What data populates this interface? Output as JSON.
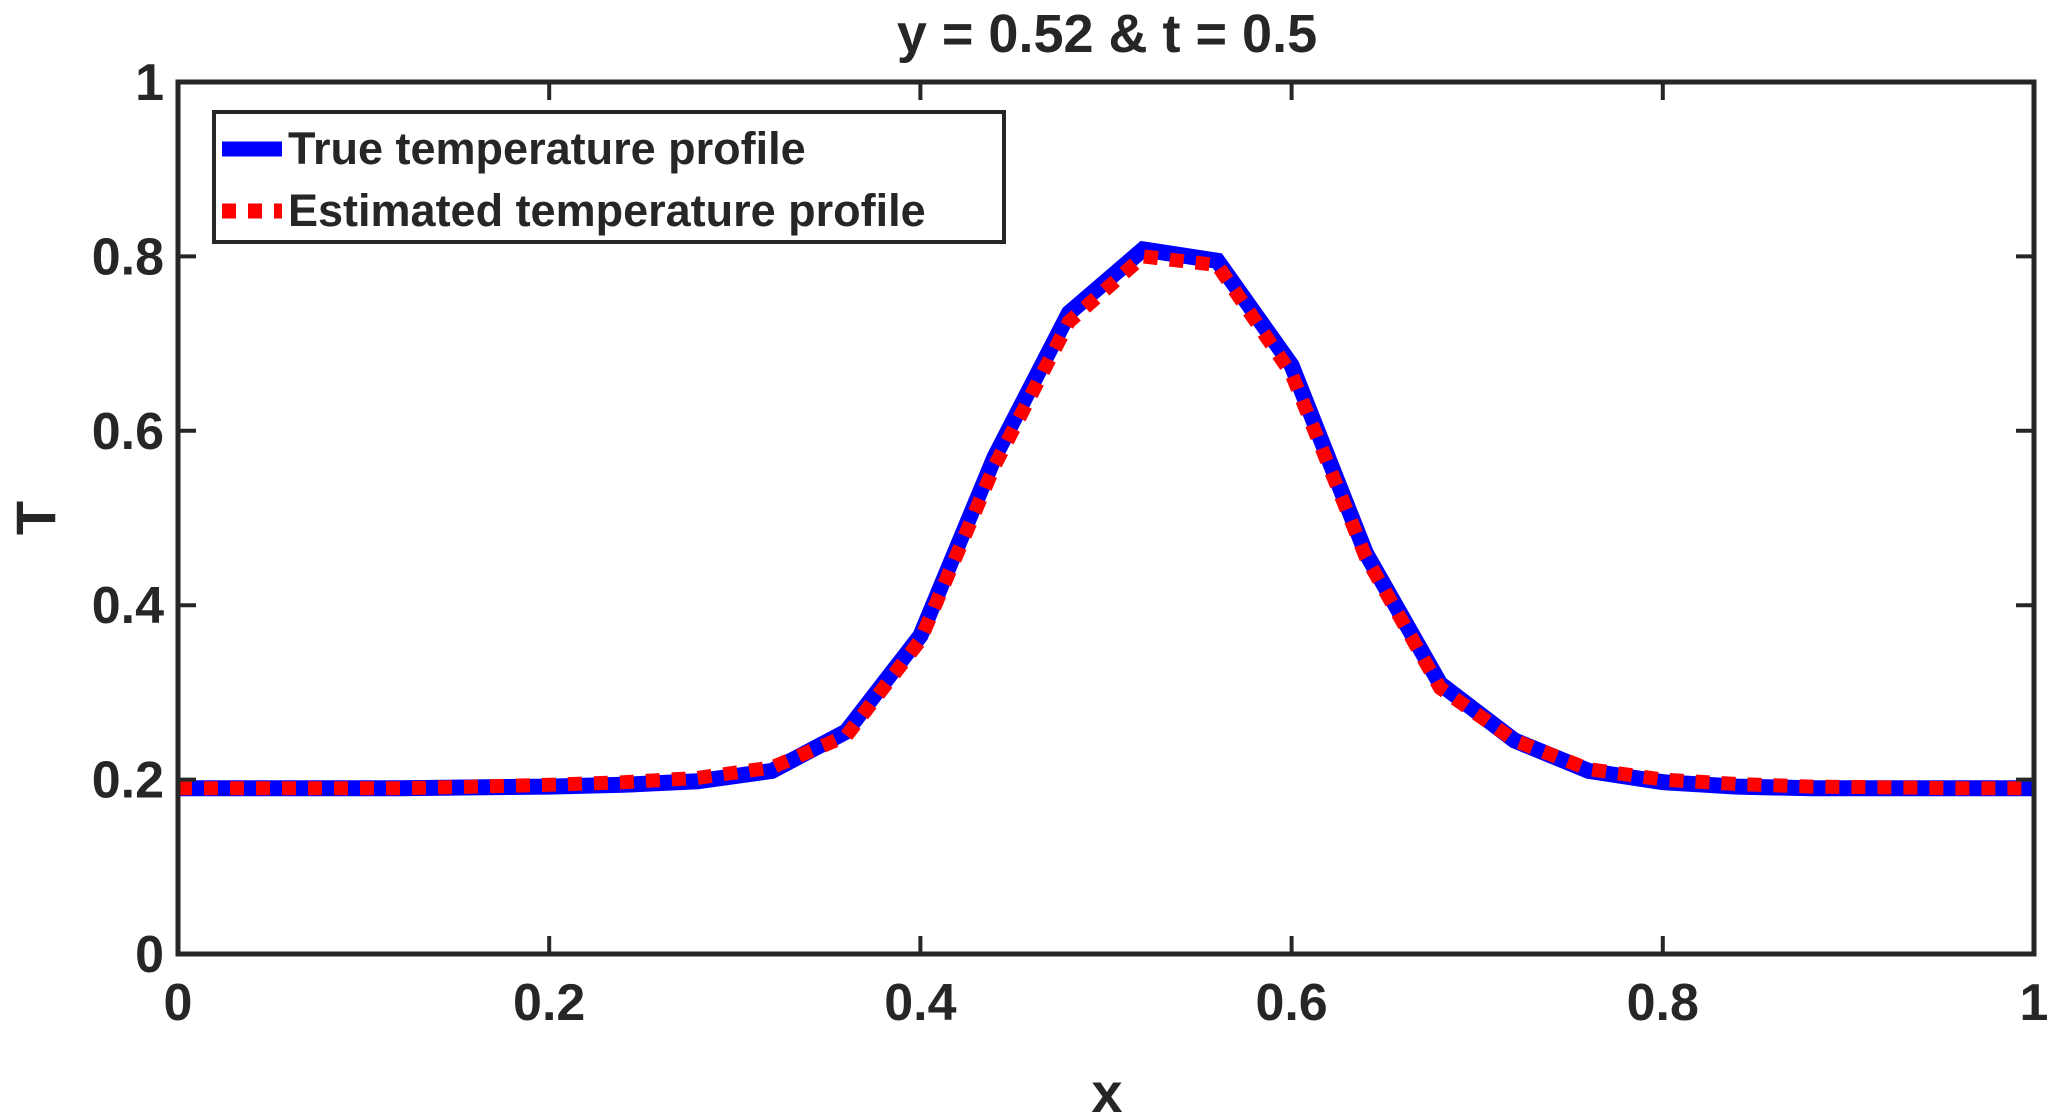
{
  "chart_data": {
    "type": "line",
    "title": "y = 0.52 & t = 0.5",
    "xlabel": "x",
    "ylabel": "T",
    "xlim": [
      0,
      1
    ],
    "ylim": [
      0,
      1
    ],
    "xticks": [
      0,
      0.2,
      0.4,
      0.6,
      0.8,
      1
    ],
    "xtick_labels": [
      "0",
      "0.2",
      "0.4",
      "0.6",
      "0.8",
      "1"
    ],
    "yticks": [
      0,
      0.2,
      0.4,
      0.6,
      0.8,
      1
    ],
    "ytick_labels": [
      "0",
      "0.2",
      "0.4",
      "0.6",
      "0.8",
      "1"
    ],
    "grid": false,
    "legend_position": "top-left",
    "x": [
      0,
      0.04,
      0.08,
      0.12,
      0.16,
      0.2,
      0.24,
      0.28,
      0.32,
      0.36,
      0.4,
      0.44,
      0.48,
      0.52,
      0.56,
      0.6,
      0.64,
      0.68,
      0.72,
      0.76,
      0.8,
      0.84,
      0.88,
      0.92,
      0.96,
      1
    ],
    "series": [
      {
        "name": "True temperature profile",
        "color": "#0000ff",
        "style": "solid",
        "values": [
          0.19,
          0.19,
          0.19,
          0.19,
          0.191,
          0.192,
          0.194,
          0.198,
          0.21,
          0.255,
          0.365,
          0.57,
          0.735,
          0.808,
          0.795,
          0.675,
          0.46,
          0.31,
          0.245,
          0.21,
          0.197,
          0.192,
          0.19,
          0.19,
          0.19,
          0.19
        ]
      },
      {
        "name": "Estimated temperature profile",
        "color": "#ff0000",
        "style": "dotted",
        "values": [
          0.19,
          0.19,
          0.19,
          0.19,
          0.192,
          0.194,
          0.197,
          0.202,
          0.214,
          0.25,
          0.36,
          0.56,
          0.725,
          0.8,
          0.79,
          0.665,
          0.455,
          0.305,
          0.245,
          0.212,
          0.2,
          0.195,
          0.192,
          0.191,
          0.19,
          0.19
        ]
      }
    ]
  }
}
